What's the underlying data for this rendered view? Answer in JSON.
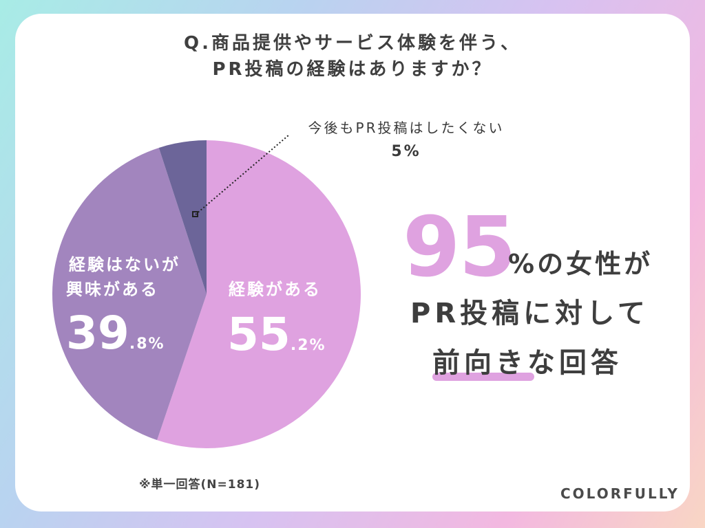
{
  "title": {
    "line1": "Q.商品提供やサービス体験を伴う、",
    "line2": "PR投稿の経験はありますか？"
  },
  "chart_data": {
    "type": "pie",
    "categories": [
      "経験がある",
      "経験はないが興味がある",
      "今後もPR投稿はしたくない"
    ],
    "values": [
      55.2,
      39.8,
      5
    ],
    "colors": [
      "#dfa2e0",
      "#a285be",
      "#6c6599"
    ],
    "slices": [
      {
        "label_line1": "経験がある",
        "label_line2": "",
        "value_int": "55",
        "value_dec": ".2%"
      },
      {
        "label_line1": "経験はないが",
        "label_line2": "興味がある",
        "value_int": "39",
        "value_dec": ".8%"
      },
      {
        "label_line1": "今後もPR投稿はしたくない",
        "label_line2": "",
        "value_text": "5%"
      }
    ],
    "start_direction": "12 o'clock",
    "order": "clockwise"
  },
  "headline": {
    "big_number": "95",
    "line1": "%の女性が",
    "line2": "PR投稿に対して",
    "line3": "前向きな回答",
    "accent_color": "#dfa2e0"
  },
  "footnote": "※単一回答(N=181)",
  "brand": "COLORFULLY"
}
